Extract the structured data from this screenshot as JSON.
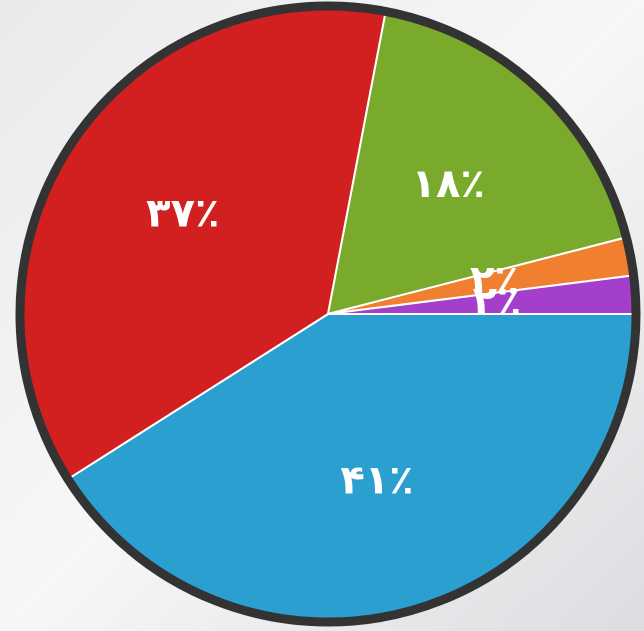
{
  "chart_data": {
    "type": "pie",
    "categories": [
      null,
      null,
      null,
      null,
      null
    ],
    "values": [
      41,
      37,
      18,
      2,
      2
    ],
    "value_labels": [
      "۴۱٪",
      "۳۷٪",
      "۱۸٪",
      "۲٪",
      "۲٪"
    ],
    "colors": [
      "#2a9fd0",
      "#d21f1f",
      "#7aaa2b",
      "#f0802f",
      "#a43fcc"
    ]
  }
}
